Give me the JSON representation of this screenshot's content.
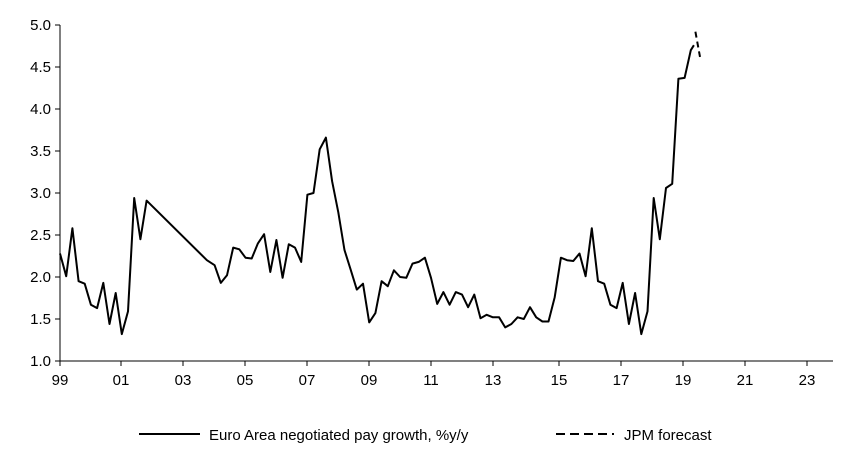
{
  "chart_data": {
    "type": "line",
    "title": "",
    "xlabel": "",
    "ylabel": "",
    "ylim": [
      1.0,
      5.0
    ],
    "xlim": [
      1999.0,
      2024.0
    ],
    "y_ticks": [
      1.0,
      1.5,
      2.0,
      2.5,
      3.0,
      3.5,
      4.0,
      4.5,
      5.0
    ],
    "y_tick_labels": [
      "1.0",
      "1.5",
      "2.0",
      "2.5",
      "3.0",
      "3.5",
      "4.0",
      "4.5",
      "5.0"
    ],
    "x_ticks": [
      1999,
      2001,
      2003,
      2005,
      2007,
      2009,
      2011,
      2013,
      2015,
      2017,
      2019,
      2021,
      2023
    ],
    "x_tick_labels": [
      "99",
      "01",
      "03",
      "05",
      "07",
      "09",
      "11",
      "13",
      "15",
      "17",
      "19",
      "21",
      "23"
    ],
    "grid": false,
    "legend_position": "bottom",
    "series": [
      {
        "name": "Euro Area negotiated pay growth, %y/y",
        "style": "solid",
        "color": "#000000",
        "points": [
          [
            1999.0,
            2.28
          ],
          [
            1999.2,
            2.01
          ],
          [
            1999.4,
            2.58
          ],
          [
            1999.6,
            1.95
          ],
          [
            1999.8,
            1.92
          ],
          [
            2000.0,
            1.67
          ],
          [
            2000.2,
            1.63
          ],
          [
            2000.4,
            1.93
          ],
          [
            2000.6,
            1.44
          ],
          [
            2000.8,
            1.81
          ],
          [
            2001.0,
            1.32
          ],
          [
            2001.2,
            1.59
          ],
          [
            2001.4,
            2.94
          ],
          [
            2001.6,
            2.45
          ],
          [
            2001.8,
            2.91
          ],
          [
            2003.75,
            2.2
          ],
          [
            2004.0,
            2.14
          ],
          [
            2004.2,
            1.93
          ],
          [
            2004.4,
            2.02
          ],
          [
            2004.6,
            2.35
          ],
          [
            2004.8,
            2.33
          ],
          [
            2005.0,
            2.23
          ],
          [
            2005.2,
            2.22
          ],
          [
            2005.4,
            2.4
          ],
          [
            2005.6,
            2.51
          ],
          [
            2005.8,
            2.06
          ],
          [
            2006.0,
            2.44
          ],
          [
            2006.2,
            1.99
          ],
          [
            2006.4,
            2.39
          ],
          [
            2006.6,
            2.35
          ],
          [
            2006.8,
            2.18
          ],
          [
            2007.0,
            2.98
          ],
          [
            2007.2,
            3.0
          ],
          [
            2007.4,
            3.52
          ],
          [
            2007.6,
            3.66
          ],
          [
            2007.8,
            3.14
          ],
          [
            2008.0,
            2.77
          ],
          [
            2008.2,
            2.32
          ],
          [
            2008.4,
            2.09
          ],
          [
            2008.6,
            1.85
          ],
          [
            2008.8,
            1.92
          ],
          [
            2009.0,
            1.46
          ],
          [
            2009.2,
            1.57
          ],
          [
            2009.4,
            1.95
          ],
          [
            2009.6,
            1.89
          ],
          [
            2009.8,
            2.08
          ],
          [
            2010.0,
            2.0
          ],
          [
            2010.2,
            1.99
          ],
          [
            2010.4,
            2.16
          ],
          [
            2010.6,
            2.18
          ],
          [
            2010.8,
            2.23
          ],
          [
            2011.0,
            1.99
          ],
          [
            2011.2,
            1.68
          ],
          [
            2011.4,
            1.82
          ],
          [
            2011.6,
            1.67
          ],
          [
            2011.8,
            1.82
          ],
          [
            2012.0,
            1.79
          ],
          [
            2012.2,
            1.64
          ],
          [
            2012.4,
            1.79
          ],
          [
            2012.6,
            1.51
          ],
          [
            2012.8,
            1.55
          ],
          [
            2013.0,
            1.52
          ],
          [
            2013.2,
            1.52
          ],
          [
            2013.4,
            1.4
          ],
          [
            2013.6,
            1.44
          ],
          [
            2013.8,
            1.52
          ],
          [
            2014.0,
            1.5
          ],
          [
            2014.2,
            1.64
          ],
          [
            2014.4,
            1.52
          ],
          [
            2014.6,
            1.47
          ],
          [
            2014.8,
            1.47
          ],
          [
            2015.0,
            1.76
          ],
          [
            2015.2,
            2.23
          ],
          [
            2015.4,
            2.2
          ],
          [
            2015.6,
            2.19
          ],
          [
            2015.8,
            2.28
          ],
          [
            2016.0,
            2.01
          ],
          [
            2016.2,
            2.58
          ],
          [
            2016.4,
            1.95
          ],
          [
            2016.6,
            1.92
          ],
          [
            2016.8,
            1.67
          ],
          [
            2017.0,
            1.63
          ],
          [
            2017.2,
            1.93
          ],
          [
            2017.4,
            1.44
          ],
          [
            2017.6,
            1.81
          ],
          [
            2017.8,
            1.32
          ],
          [
            2018.0,
            1.59
          ],
          [
            2018.2,
            2.94
          ],
          [
            2018.4,
            2.45
          ],
          [
            2018.6,
            3.06
          ],
          [
            2018.8,
            3.11
          ],
          [
            2019.0,
            4.36
          ],
          [
            2019.2,
            4.37
          ],
          [
            2019.4,
            4.7
          ],
          [
            2019.5,
            4.76
          ]
        ]
      },
      {
        "name": "JPM forecast",
        "style": "dashed",
        "color": "#000000",
        "points": [
          [
            2019.55,
            4.92
          ],
          [
            2019.7,
            4.62
          ]
        ]
      }
    ]
  }
}
